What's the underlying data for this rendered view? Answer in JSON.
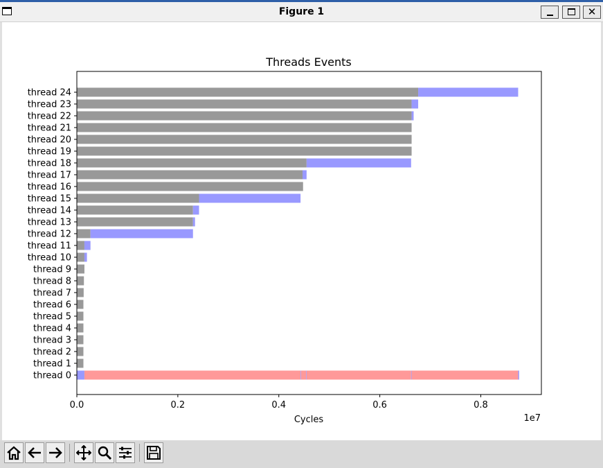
{
  "window": {
    "title": "Figure 1"
  },
  "colors": {
    "gray": "#999999",
    "blue": "#9999ff",
    "red": "#ff9999"
  },
  "chart_data": {
    "type": "bar",
    "orientation": "horizontal-stacked",
    "title": "Threads Events",
    "xlabel": "Cycles",
    "x_offset_label": "1e7",
    "xlim": [
      0,
      9200000
    ],
    "xticks": [
      0,
      2000000,
      4000000,
      6000000,
      8000000
    ],
    "xtick_labels": [
      "0.0",
      "0.2",
      "0.4",
      "0.6",
      "0.8"
    ],
    "grid": false,
    "categories": [
      "thread 0",
      "thread 1",
      "thread 2",
      "thread 3",
      "thread 4",
      "thread 5",
      "thread 6",
      "thread 7",
      "thread 8",
      "thread 9",
      "thread 10",
      "thread 11",
      "thread 12",
      "thread 13",
      "thread 14",
      "thread 15",
      "thread 16",
      "thread 17",
      "thread 18",
      "thread 19",
      "thread 20",
      "thread 21",
      "thread 22",
      "thread 23",
      "thread 24"
    ],
    "segments": [
      [
        {
          "start": 0,
          "end": 150000,
          "color": "blue"
        },
        {
          "start": 150000,
          "end": 4430000,
          "color": "red"
        },
        {
          "start": 4430000,
          "end": 4440000,
          "color": "blue"
        },
        {
          "start": 4440000,
          "end": 4540000,
          "color": "red"
        },
        {
          "start": 4540000,
          "end": 4550000,
          "color": "blue"
        },
        {
          "start": 4550000,
          "end": 6620000,
          "color": "red"
        },
        {
          "start": 6620000,
          "end": 6630000,
          "color": "blue"
        },
        {
          "start": 6630000,
          "end": 8740000,
          "color": "red"
        },
        {
          "start": 8740000,
          "end": 8760000,
          "color": "blue"
        }
      ],
      [
        {
          "start": 0,
          "end": 130000,
          "color": "gray"
        }
      ],
      [
        {
          "start": 0,
          "end": 130000,
          "color": "gray"
        }
      ],
      [
        {
          "start": 0,
          "end": 130000,
          "color": "gray"
        }
      ],
      [
        {
          "start": 0,
          "end": 130000,
          "color": "gray"
        }
      ],
      [
        {
          "start": 0,
          "end": 130000,
          "color": "gray"
        }
      ],
      [
        {
          "start": 0,
          "end": 130000,
          "color": "gray"
        }
      ],
      [
        {
          "start": 0,
          "end": 135000,
          "color": "gray"
        }
      ],
      [
        {
          "start": 0,
          "end": 140000,
          "color": "gray"
        }
      ],
      [
        {
          "start": 0,
          "end": 150000,
          "color": "gray"
        }
      ],
      [
        {
          "start": 0,
          "end": 150000,
          "color": "gray"
        },
        {
          "start": 150000,
          "end": 200000,
          "color": "blue"
        }
      ],
      [
        {
          "start": 0,
          "end": 150000,
          "color": "gray"
        },
        {
          "start": 150000,
          "end": 270000,
          "color": "blue"
        }
      ],
      [
        {
          "start": 0,
          "end": 270000,
          "color": "gray"
        },
        {
          "start": 270000,
          "end": 2300000,
          "color": "blue"
        }
      ],
      [
        {
          "start": 0,
          "end": 2300000,
          "color": "gray"
        },
        {
          "start": 2300000,
          "end": 2340000,
          "color": "blue"
        }
      ],
      [
        {
          "start": 0,
          "end": 2300000,
          "color": "gray"
        },
        {
          "start": 2300000,
          "end": 2420000,
          "color": "blue"
        }
      ],
      [
        {
          "start": 0,
          "end": 2420000,
          "color": "gray"
        },
        {
          "start": 2420000,
          "end": 4430000,
          "color": "blue"
        }
      ],
      [
        {
          "start": 0,
          "end": 4480000,
          "color": "gray"
        }
      ],
      [
        {
          "start": 0,
          "end": 4470000,
          "color": "gray"
        },
        {
          "start": 4470000,
          "end": 4550000,
          "color": "blue"
        }
      ],
      [
        {
          "start": 0,
          "end": 4550000,
          "color": "gray"
        },
        {
          "start": 4550000,
          "end": 6620000,
          "color": "blue"
        }
      ],
      [
        {
          "start": 0,
          "end": 6630000,
          "color": "gray"
        }
      ],
      [
        {
          "start": 0,
          "end": 6630000,
          "color": "gray"
        }
      ],
      [
        {
          "start": 0,
          "end": 6630000,
          "color": "gray"
        }
      ],
      [
        {
          "start": 0,
          "end": 6630000,
          "color": "gray"
        },
        {
          "start": 6630000,
          "end": 6670000,
          "color": "blue"
        }
      ],
      [
        {
          "start": 0,
          "end": 6630000,
          "color": "gray"
        },
        {
          "start": 6630000,
          "end": 6760000,
          "color": "blue"
        }
      ],
      [
        {
          "start": 0,
          "end": 6760000,
          "color": "gray"
        },
        {
          "start": 6760000,
          "end": 8740000,
          "color": "blue"
        }
      ]
    ]
  },
  "toolbar": {
    "buttons": [
      {
        "name": "home-icon"
      },
      {
        "name": "back-arrow-icon"
      },
      {
        "name": "forward-arrow-icon"
      },
      {
        "name": "pan-icon"
      },
      {
        "name": "zoom-icon"
      },
      {
        "name": "subplots-configure-icon"
      },
      {
        "name": "save-icon"
      }
    ]
  }
}
